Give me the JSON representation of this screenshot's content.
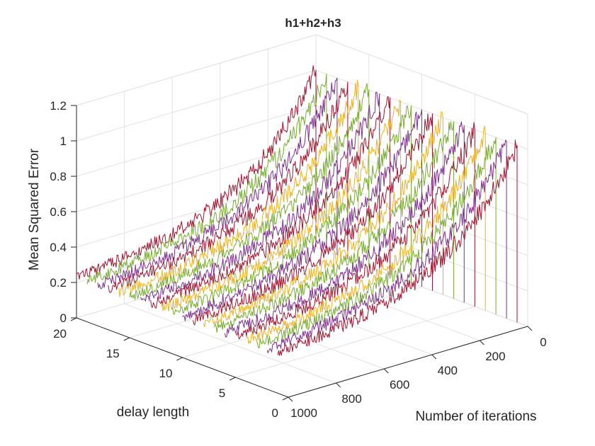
{
  "chart_data": {
    "type": "line",
    "title": "h1+h2+h3",
    "xlabel": "Number of iterations",
    "ylabel": "delay length",
    "zlabel": "Mean Squared Error",
    "xlim": [
      0,
      1000
    ],
    "ylim": [
      0,
      20
    ],
    "zlim": [
      0,
      1.2
    ],
    "xticks": [
      "0",
      "200",
      "400",
      "600",
      "800",
      "1000"
    ],
    "yticks": [
      "0",
      "5",
      "10",
      "15",
      "20"
    ],
    "zticks": [
      "0",
      "0.2",
      "0.4",
      "0.6",
      "0.8",
      "1",
      "1.2"
    ],
    "grid": true,
    "legend": "none",
    "view": "3d",
    "series_model": "Each curve corresponds to one delay length d; MSE decays from about 1 at iteration 0 to about 0.2 at iteration 1000, with noise; curves are drawn as waterfall lines with vertical drop at iteration 0.",
    "colors": [
      "#a2142f",
      "#7e2f8e",
      "#77ac30",
      "#edb120"
    ],
    "series": [
      {
        "delay": 1,
        "color": "#a2142f",
        "start": 1.0,
        "end": 0.2
      },
      {
        "delay": 2,
        "color": "#7e2f8e",
        "start": 1.0,
        "end": 0.2
      },
      {
        "delay": 3,
        "color": "#77ac30",
        "start": 1.0,
        "end": 0.2
      },
      {
        "delay": 4,
        "color": "#edb120",
        "start": 1.0,
        "end": 0.2
      },
      {
        "delay": 5,
        "color": "#a2142f",
        "start": 1.0,
        "end": 0.2
      },
      {
        "delay": 6,
        "color": "#7e2f8e",
        "start": 1.0,
        "end": 0.2
      },
      {
        "delay": 7,
        "color": "#77ac30",
        "start": 1.0,
        "end": 0.2
      },
      {
        "delay": 8,
        "color": "#edb120",
        "start": 1.0,
        "end": 0.2
      },
      {
        "delay": 9,
        "color": "#a2142f",
        "start": 1.0,
        "end": 0.2
      },
      {
        "delay": 10,
        "color": "#7e2f8e",
        "start": 1.0,
        "end": 0.2
      },
      {
        "delay": 11,
        "color": "#77ac30",
        "start": 1.0,
        "end": 0.2
      },
      {
        "delay": 12,
        "color": "#edb120",
        "start": 1.0,
        "end": 0.2
      },
      {
        "delay": 13,
        "color": "#a2142f",
        "start": 1.0,
        "end": 0.2
      },
      {
        "delay": 14,
        "color": "#7e2f8e",
        "start": 1.0,
        "end": 0.2
      },
      {
        "delay": 15,
        "color": "#77ac30",
        "start": 1.0,
        "end": 0.2
      },
      {
        "delay": 16,
        "color": "#edb120",
        "start": 1.0,
        "end": 0.2
      },
      {
        "delay": 17,
        "color": "#a2142f",
        "start": 1.0,
        "end": 0.2
      },
      {
        "delay": 18,
        "color": "#7e2f8e",
        "start": 1.0,
        "end": 0.2
      },
      {
        "delay": 19,
        "color": "#77ac30",
        "start": 1.0,
        "end": 0.2
      },
      {
        "delay": 20,
        "color": "#a2142f",
        "start": 1.0,
        "end": 0.2
      }
    ]
  }
}
